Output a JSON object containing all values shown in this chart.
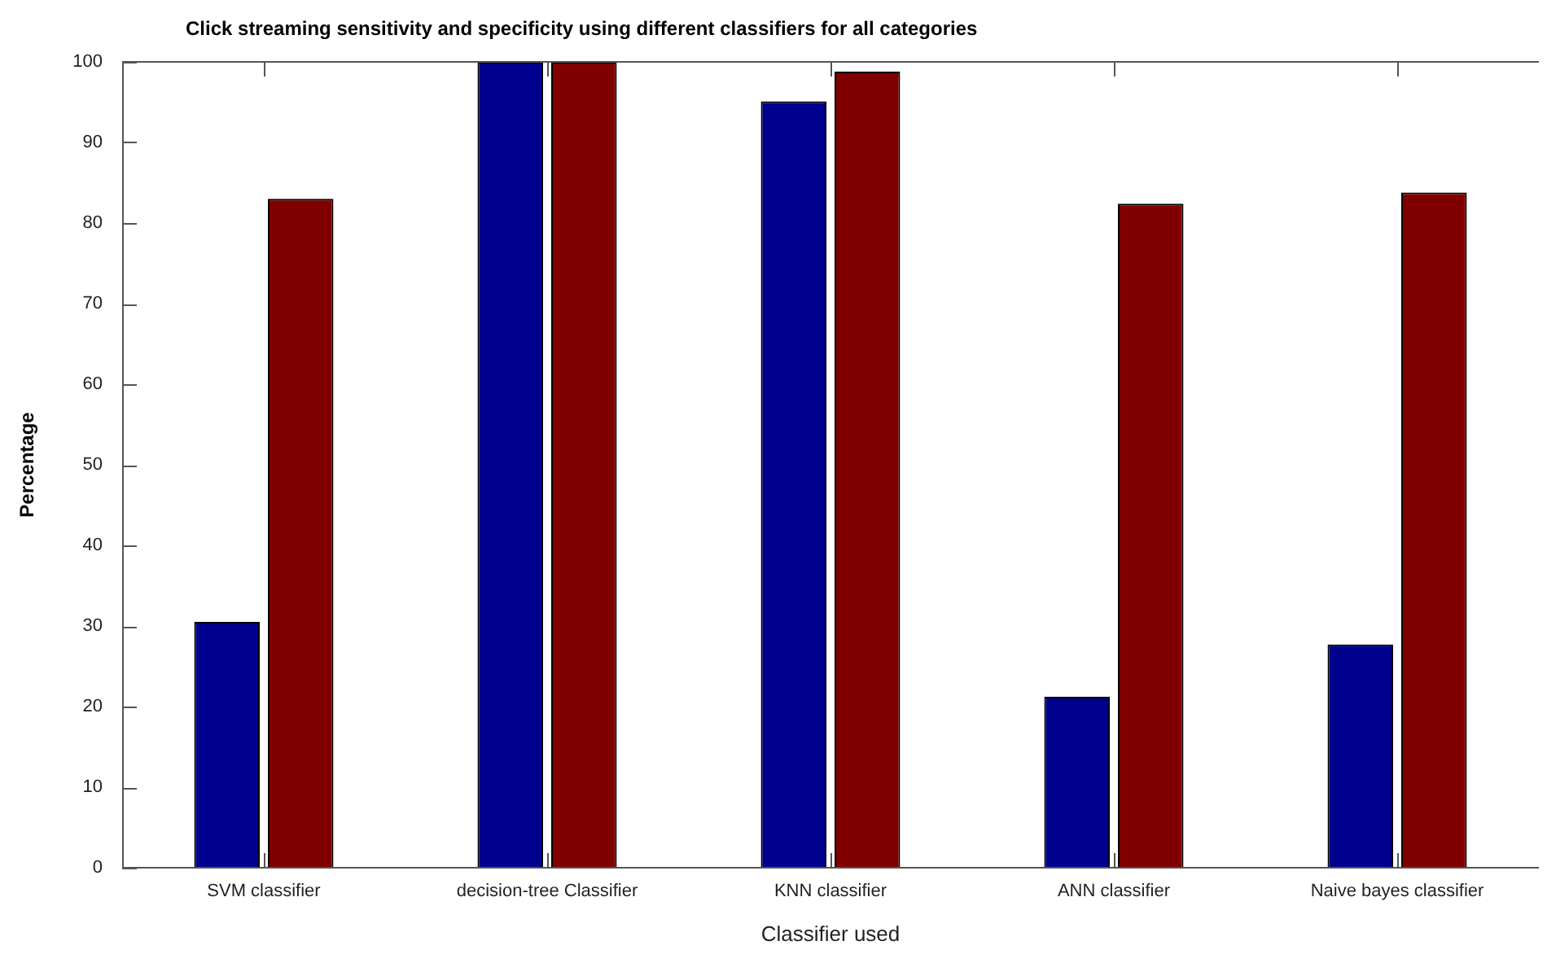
{
  "chart_data": {
    "type": "bar",
    "title": "Click streaming sensitivity and specificity using different classifiers for all categories",
    "xlabel": "Classifier used",
    "ylabel": "Percentage",
    "categories": [
      "SVM classifier",
      "decision-tree Classifier",
      "KNN classifier",
      "ANN classifier",
      "Naive bayes classifier"
    ],
    "series": [
      {
        "color": "#00008f",
        "values": [
          30.5,
          100,
          95.1,
          21.2,
          27.7
        ]
      },
      {
        "color": "#800000",
        "values": [
          83.0,
          100,
          98.8,
          82.4,
          83.8
        ]
      }
    ],
    "ylim": [
      0,
      100
    ],
    "yticks": [
      0,
      10,
      20,
      30,
      40,
      50,
      60,
      70,
      80,
      90,
      100
    ],
    "grid": false,
    "legend": false
  }
}
